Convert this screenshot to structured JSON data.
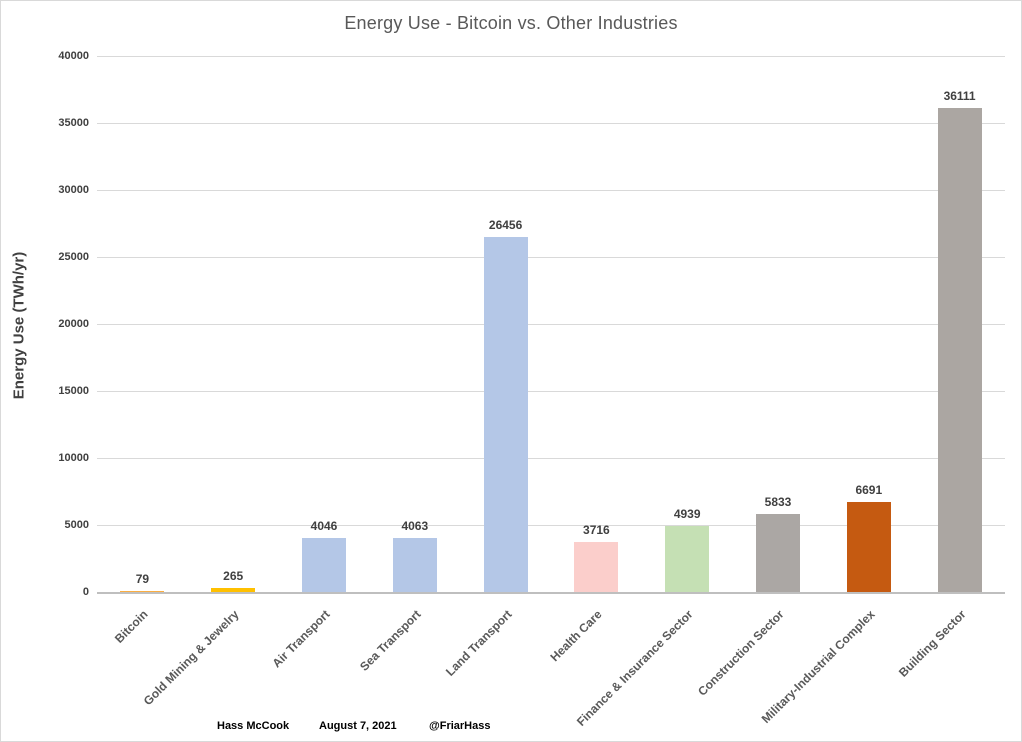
{
  "title": "Energy Use - Bitcoin vs. Other Industries",
  "chart_data": {
    "type": "bar",
    "title": "Energy Use - Bitcoin vs. Other Industries",
    "categories": [
      "Bitcoin",
      "Gold Mining & Jewelry",
      "Air Transport",
      "Sea Transport",
      "Land Transport",
      "Health Care",
      "Finance & Insurance Sector",
      "Construction Sector",
      "Military-Industrial Complex",
      "Building Sector"
    ],
    "values": [
      79,
      265,
      4046,
      4063,
      26456,
      3716,
      4939,
      5833,
      6691,
      36111
    ],
    "value_labels": [
      "79",
      "265",
      "4046",
      "4063",
      "26456",
      "3716",
      "4939",
      "5833",
      "6691",
      "36111"
    ],
    "bar_colors": [
      "#FBAE42",
      "#FFC000",
      "#B4C7E7",
      "#B4C7E7",
      "#B4C7E7",
      "#FBCECB",
      "#C5E0B4",
      "#ABA7A4",
      "#C55A11",
      "#ABA6A2"
    ],
    "xlabel": "",
    "ylabel": "Energy Use (TWh/yr)",
    "ylim": [
      0,
      40000
    ],
    "ytick_interval": 5000,
    "ytick_labels": [
      "0",
      "5000",
      "10000",
      "15000",
      "20000",
      "25000",
      "30000",
      "35000",
      "40000"
    ],
    "grid": true,
    "legend": false
  },
  "footer": {
    "author": "Hass McCook",
    "date": "August 7, 2021",
    "handle": "@FriarHass"
  },
  "colors": {
    "title_text": "#595959",
    "axis_text": "#404040",
    "category_text": "#595959",
    "gridline": "#D9D9D9",
    "axis_line": "#BFBFBF",
    "background": "#FFFFFF",
    "chart_border": "#D9D9D9"
  }
}
